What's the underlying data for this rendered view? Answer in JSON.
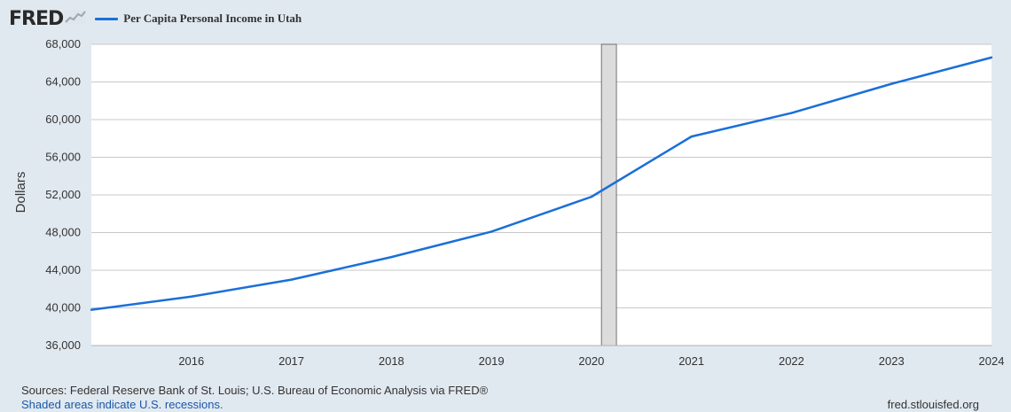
{
  "header": {
    "logo_text": "FRED",
    "logo_icon": "line-chart-icon",
    "legend_label": "Per Capita Personal Income in Utah"
  },
  "colors": {
    "line": "#1a6fd8",
    "recession": "#dcdcdc",
    "background": "#e1e9f0",
    "plot": "#ffffff",
    "grid": "#c8c8c8"
  },
  "chart_data": {
    "type": "line",
    "title": "",
    "xlabel": "",
    "ylabel": "Dollars",
    "xlim": [
      2015,
      2024
    ],
    "ylim": [
      36000,
      68000
    ],
    "x_ticks": [
      "2016",
      "2017",
      "2018",
      "2019",
      "2020",
      "2021",
      "2022",
      "2023",
      "2024"
    ],
    "y_ticks": [
      "36,000",
      "40,000",
      "44,000",
      "48,000",
      "52,000",
      "56,000",
      "60,000",
      "64,000",
      "68,000"
    ],
    "grid": true,
    "legend_position": "top-left",
    "recessions": [
      {
        "start": 2020.1,
        "end": 2020.25
      }
    ],
    "series": [
      {
        "name": "Per Capita Personal Income in Utah",
        "x": [
          2015,
          2016,
          2017,
          2018,
          2019,
          2020,
          2021,
          2022,
          2023,
          2024
        ],
        "y": [
          39800,
          41200,
          43000,
          45400,
          48100,
          51800,
          58200,
          60700,
          63800,
          66600
        ]
      }
    ]
  },
  "footer": {
    "sources": "Sources: Federal Reserve Bank of St. Louis; U.S. Bureau of Economic Analysis via FRED®",
    "note": "Shaded areas indicate U.S. recessions.",
    "site": "fred.stlouisfed.org"
  }
}
